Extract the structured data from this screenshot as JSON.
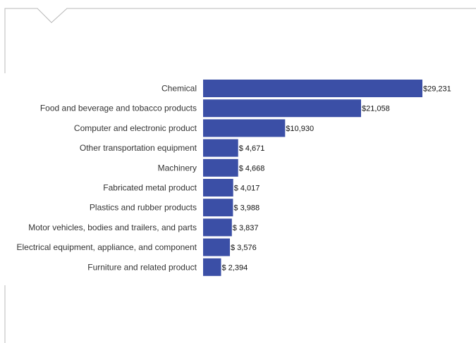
{
  "colors": {
    "bar": "#3b4fa6",
    "frame": "#b8b8b8"
  },
  "chart_data": {
    "type": "bar",
    "orientation": "horizontal",
    "title": "",
    "xlabel": "",
    "ylabel": "",
    "xlim": [
      0,
      30000
    ],
    "grid": false,
    "categories": [
      "Chemical",
      "Food and beverage and tobacco products",
      "Computer and electronic product",
      "Other transportation equipment",
      "Machinery",
      "Fabricated metal product",
      "Plastics and rubber products",
      "Motor vehicles, bodies and trailers, and parts",
      "Electrical equipment, appliance, and component",
      "Furniture and related product"
    ],
    "values": [
      29231,
      21058,
      10930,
      4671,
      4668,
      4017,
      3988,
      3837,
      3576,
      2394
    ],
    "value_labels": [
      "$29,231",
      "$21,058",
      "$10,930",
      "$ 4,671",
      "$ 4,668",
      "$ 4,017",
      "$ 3,988",
      "$ 3,837",
      "$ 3,576",
      "$ 2,394"
    ]
  }
}
